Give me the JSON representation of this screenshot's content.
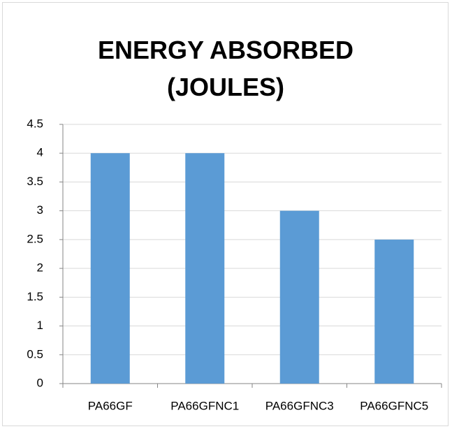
{
  "chart_data": {
    "type": "bar",
    "title": "ENERGY ABSORBED (JOULES)",
    "categories": [
      "PA66GF",
      "PA66GFNC1",
      "PA66GFNC3",
      "PA66GFNC5"
    ],
    "values": [
      4,
      4,
      3,
      2.5
    ],
    "color": "#5b9bd5",
    "ylim": [
      0,
      4.5
    ],
    "yticks": [
      0,
      0.5,
      1,
      1.5,
      2,
      2.5,
      3,
      3.5,
      4,
      4.5
    ],
    "grid": true
  }
}
